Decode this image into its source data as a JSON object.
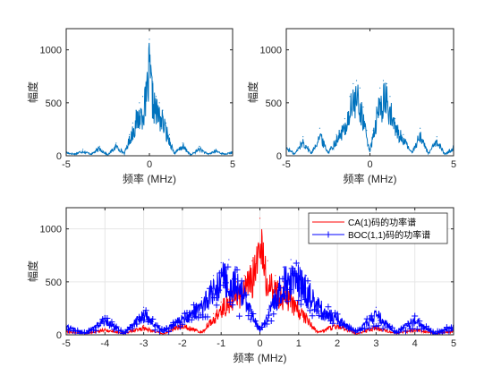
{
  "colors": {
    "ca": "#ff0000",
    "boc": "#0000ff",
    "spectrum": "#0072bd",
    "axis": "#262626",
    "grid": "#e6e6e6"
  },
  "chart_data": [
    {
      "type": "line",
      "xlabel": "频率 (MHz)",
      "ylabel": "幅度",
      "xlim": [
        -5,
        5
      ],
      "ylim": [
        0,
        1200
      ],
      "xticks": [
        -5,
        0,
        5
      ],
      "yticks": [
        0,
        500,
        1000
      ],
      "grid": false,
      "series": [
        {
          "x": [
            -5,
            -4.5,
            -4,
            -3.5,
            -3,
            -2.5,
            -2,
            -1.5,
            -1.2,
            -1,
            -0.8,
            -0.6,
            -0.4,
            -0.2,
            0,
            0.2,
            0.4,
            0.6,
            0.8,
            1,
            1.2,
            1.5,
            2,
            2.5,
            3,
            3.5,
            4,
            4.5,
            5
          ],
          "y": [
            40,
            20,
            60,
            20,
            90,
            10,
            120,
            30,
            200,
            310,
            430,
            500,
            560,
            700,
            1100,
            700,
            560,
            500,
            430,
            310,
            200,
            30,
            120,
            10,
            90,
            20,
            60,
            20,
            40
          ]
        }
      ]
    },
    {
      "type": "line",
      "xlabel": "频率 (MHz)",
      "ylabel": "幅度",
      "xlim": [
        -5,
        5
      ],
      "ylim": [
        0,
        1200
      ],
      "xticks": [
        -5,
        0,
        5
      ],
      "yticks": [
        0,
        500,
        1000
      ],
      "grid": false,
      "series": [
        {
          "x": [
            -5,
            -4.5,
            -4,
            -3.5,
            -3,
            -2.5,
            -2,
            -1.5,
            -1.2,
            -1,
            -0.8,
            -0.6,
            -0.4,
            -0.2,
            0,
            0.2,
            0.4,
            0.6,
            0.8,
            1,
            1.2,
            1.5,
            2,
            2.5,
            3,
            3.5,
            4,
            4.5,
            5
          ],
          "y": [
            100,
            20,
            180,
            30,
            260,
            40,
            200,
            350,
            560,
            680,
            710,
            640,
            460,
            240,
            60,
            240,
            460,
            640,
            710,
            680,
            560,
            350,
            200,
            40,
            260,
            30,
            180,
            20,
            100
          ]
        }
      ]
    },
    {
      "type": "line",
      "xlabel": "频率 (MHz)",
      "ylabel": "幅度",
      "xlim": [
        -5,
        5
      ],
      "ylim": [
        0,
        1200
      ],
      "xticks": [
        -5,
        -4,
        -3,
        -2,
        -1,
        0,
        1,
        2,
        3,
        4,
        5
      ],
      "yticks": [
        0,
        500,
        1000
      ],
      "grid": true,
      "legend": "top-right",
      "series": [
        {
          "name": "CA(1)码的功率谱",
          "x": [
            -5,
            -4.5,
            -4,
            -3.5,
            -3,
            -2.5,
            -2,
            -1.5,
            -1.2,
            -1,
            -0.8,
            -0.6,
            -0.4,
            -0.2,
            0,
            0.2,
            0.4,
            0.6,
            0.8,
            1,
            1.2,
            1.5,
            2,
            2.5,
            3,
            3.5,
            4,
            4.5,
            5
          ],
          "y": [
            40,
            20,
            60,
            20,
            90,
            10,
            120,
            30,
            200,
            310,
            430,
            500,
            560,
            700,
            1100,
            700,
            560,
            500,
            430,
            310,
            200,
            30,
            120,
            10,
            90,
            20,
            60,
            20,
            40
          ]
        },
        {
          "name": "BOC(1,1)码的功率谱",
          "x": [
            -5,
            -4.5,
            -4,
            -3.5,
            -3,
            -2.5,
            -2,
            -1.5,
            -1.2,
            -1,
            -0.8,
            -0.6,
            -0.4,
            -0.2,
            0,
            0.2,
            0.4,
            0.6,
            0.8,
            1,
            1.2,
            1.5,
            2,
            2.5,
            3,
            3.5,
            4,
            4.5,
            5
          ],
          "y": [
            100,
            20,
            180,
            30,
            260,
            40,
            200,
            350,
            560,
            680,
            710,
            640,
            460,
            240,
            60,
            240,
            460,
            640,
            710,
            680,
            560,
            350,
            200,
            40,
            260,
            30,
            180,
            20,
            100
          ]
        }
      ]
    }
  ]
}
